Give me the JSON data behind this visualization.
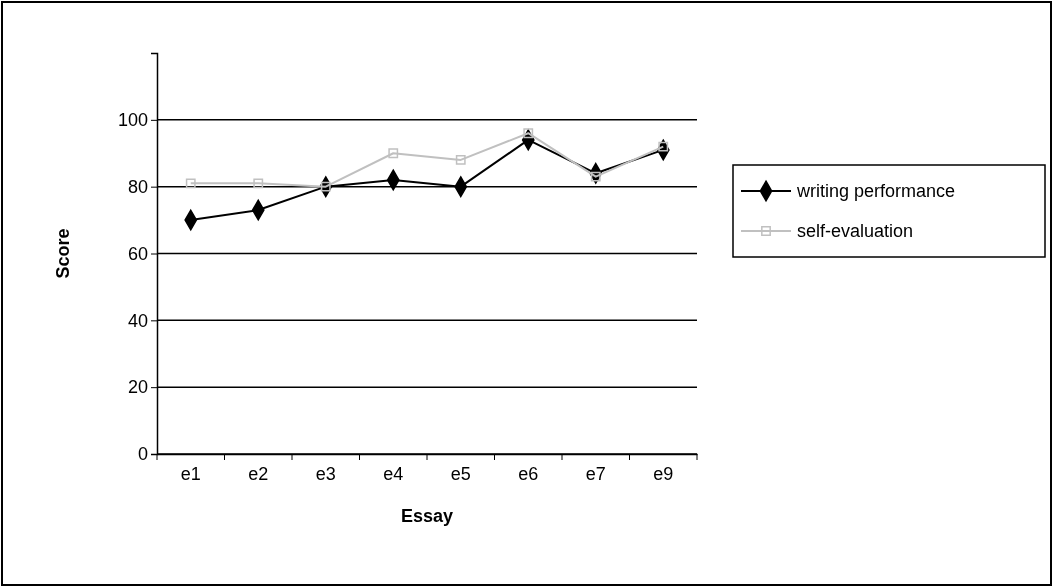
{
  "chart_data": {
    "type": "line",
    "xlabel": "Essay",
    "ylabel": "Score",
    "categories": [
      "e1",
      "e2",
      "e3",
      "e4",
      "e5",
      "e6",
      "e7",
      "e9"
    ],
    "series": [
      {
        "name": "writing performance",
        "color": "#000000",
        "marker": "diamond",
        "values": [
          70,
          73,
          80,
          82,
          80,
          94,
          84,
          91
        ]
      },
      {
        "name": "self-evaluation",
        "color": "#c0c0c0",
        "marker": "square",
        "values": [
          81,
          81,
          80,
          90,
          88,
          96,
          83,
          92
        ]
      }
    ],
    "ylim": [
      0,
      120
    ],
    "yticks": [
      0,
      20,
      40,
      60,
      80,
      100
    ],
    "grid": "y",
    "legend": "right"
  }
}
